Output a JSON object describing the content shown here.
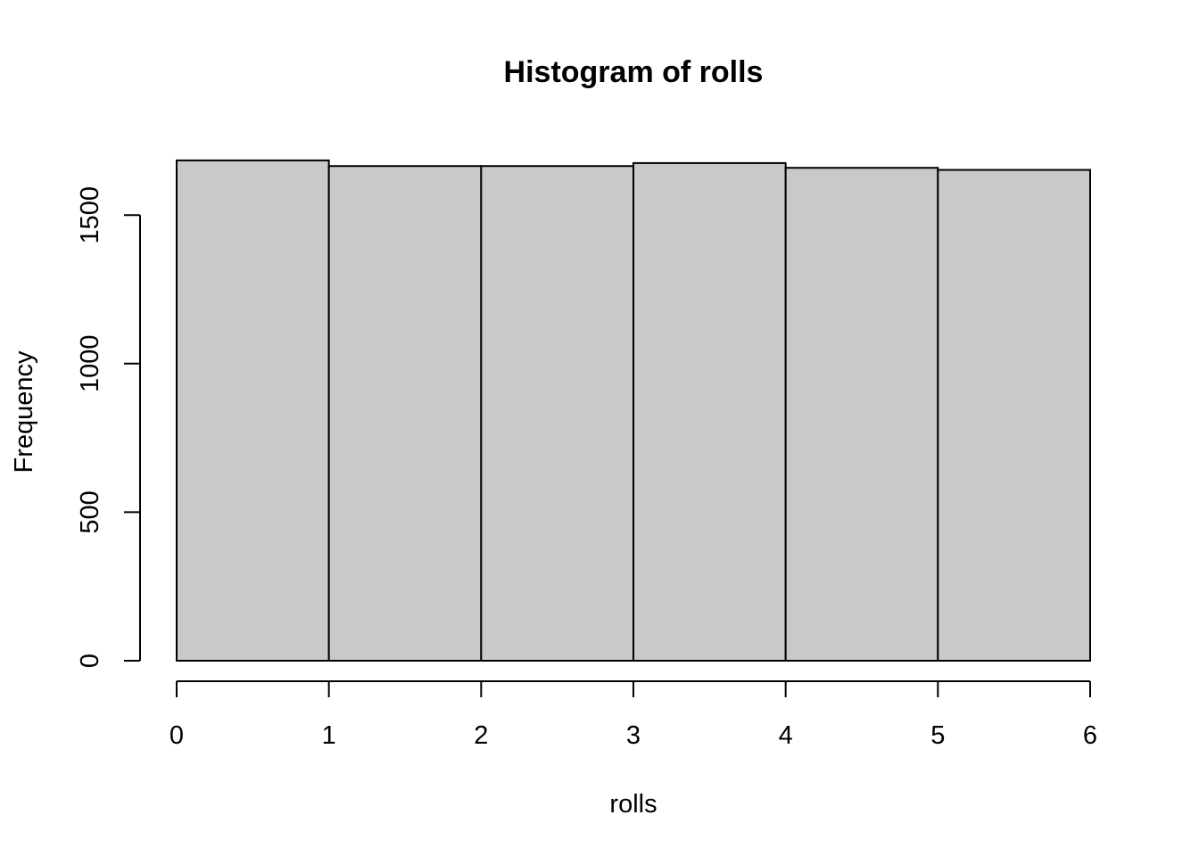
{
  "chart_data": {
    "type": "bar",
    "title": "Histogram of rolls",
    "xlabel": "rolls",
    "ylabel": "Frequency",
    "bins": [
      {
        "from": 0,
        "to": 1,
        "count": 1684
      },
      {
        "from": 1,
        "to": 2,
        "count": 1665
      },
      {
        "from": 2,
        "to": 3,
        "count": 1665
      },
      {
        "from": 3,
        "to": 4,
        "count": 1675
      },
      {
        "from": 4,
        "to": 5,
        "count": 1659
      },
      {
        "from": 5,
        "to": 6,
        "count": 1652
      }
    ],
    "x_ticks": [
      "0",
      "1",
      "2",
      "3",
      "4",
      "5",
      "6"
    ],
    "y_ticks": [
      "0",
      "500",
      "1000",
      "1500"
    ],
    "xlim": [
      0,
      6
    ],
    "ylim": [
      0,
      1684
    ],
    "grid": false,
    "legend": "none",
    "colors": {
      "bar_fill": "#c9c9c9",
      "bar_stroke": "#000000"
    }
  }
}
